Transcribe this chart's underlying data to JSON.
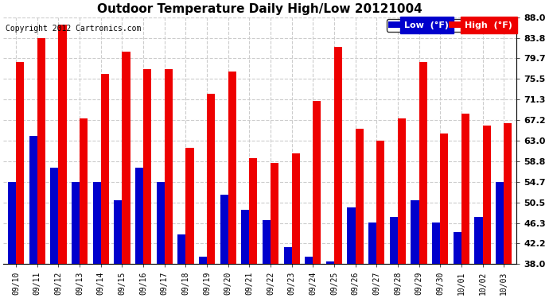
{
  "title": "Outdoor Temperature Daily High/Low 20121004",
  "copyright": "Copyright 2012 Cartronics.com",
  "legend_low": "Low  (°F)",
  "legend_high": "High  (°F)",
  "low_color": "#0000cc",
  "high_color": "#ee0000",
  "background_color": "#ffffff",
  "ylim": [
    38.0,
    88.0
  ],
  "yticks": [
    38.0,
    42.2,
    46.3,
    50.5,
    54.7,
    58.8,
    63.0,
    67.2,
    71.3,
    75.5,
    79.7,
    83.8,
    88.0
  ],
  "grid_color": "#cccccc",
  "dates": [
    "09/10",
    "09/11",
    "09/12",
    "09/13",
    "09/14",
    "09/15",
    "09/16",
    "09/17",
    "09/18",
    "09/19",
    "09/20",
    "09/21",
    "09/22",
    "09/23",
    "09/24",
    "09/25",
    "09/26",
    "09/27",
    "09/28",
    "09/29",
    "09/30",
    "10/01",
    "10/02",
    "10/03"
  ],
  "high_values": [
    79.0,
    83.8,
    86.5,
    67.5,
    76.5,
    81.0,
    77.5,
    77.5,
    61.5,
    72.5,
    77.0,
    59.5,
    58.5,
    60.5,
    71.0,
    82.0,
    65.5,
    63.0,
    67.5,
    79.0,
    64.5,
    68.5,
    66.0,
    66.5
  ],
  "low_values": [
    54.7,
    64.0,
    57.5,
    54.7,
    54.7,
    51.0,
    57.5,
    54.7,
    44.0,
    39.5,
    52.0,
    49.0,
    47.0,
    41.5,
    39.5,
    38.5,
    49.5,
    46.5,
    47.5,
    51.0,
    46.5,
    44.5,
    47.5,
    54.7
  ]
}
